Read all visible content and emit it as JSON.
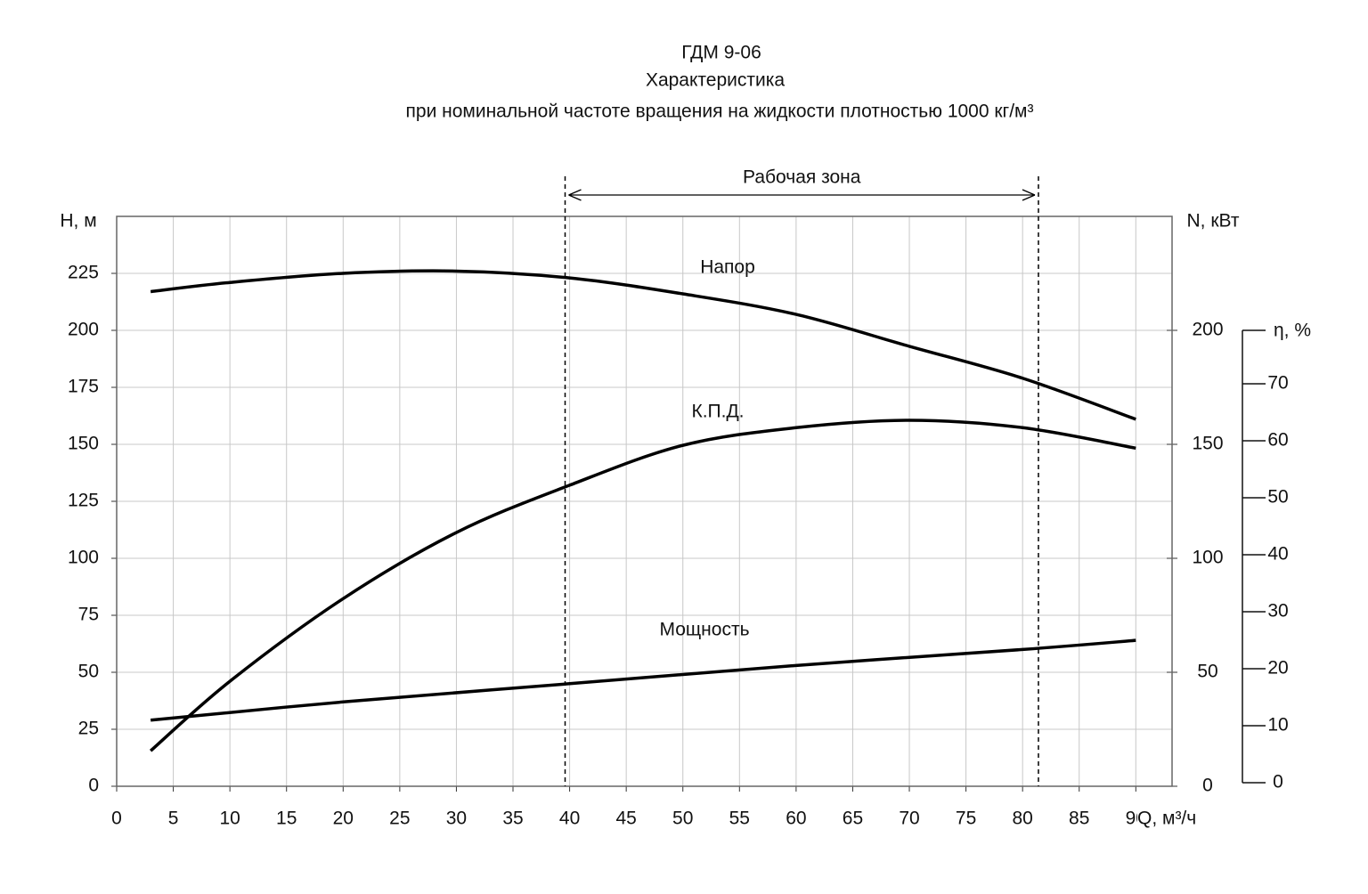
{
  "chart_data": {
    "type": "line",
    "title": "ГДМ 9-06",
    "subtitle": "Характеристика",
    "subtitle2": "при номинальной  частоте  вращения  на жидкости  плотностью  1000  кг/м³",
    "xlabel": "Q, м³/ч",
    "ylabel": "H, м",
    "y2label": "N, кВт",
    "y3label": "η, %",
    "xlim": [
      0,
      93.2
    ],
    "xticks": [
      0,
      5,
      10,
      15,
      20,
      25,
      30,
      35,
      40,
      45,
      50,
      55,
      60,
      65,
      70,
      75,
      80,
      85,
      90
    ],
    "ylim": [
      0,
      250
    ],
    "yticks": [
      0,
      25,
      50,
      75,
      100,
      125,
      150,
      175,
      200,
      225
    ],
    "y2lim": [
      0,
      250
    ],
    "y2ticks": [
      0,
      50,
      100,
      150,
      200
    ],
    "y3lim": [
      0,
      80
    ],
    "y3ticks": [
      0,
      10,
      20,
      30,
      40,
      50,
      60,
      70
    ],
    "grid": true,
    "work_zone": {
      "label": "Рабочая   зона",
      "range": [
        39.6,
        81.4
      ]
    },
    "series": [
      {
        "name": "Напор",
        "color": "#000000",
        "axis": "y",
        "x": [
          3,
          10,
          20,
          30,
          40,
          50,
          60,
          70,
          80,
          90
        ],
        "values": [
          217,
          221,
          225,
          226,
          223,
          216,
          207,
          193,
          179,
          161
        ]
      },
      {
        "name": "К.П.Д.",
        "color": "#000000",
        "axis": "y3",
        "x": [
          3,
          10,
          20,
          30,
          40,
          50,
          60,
          70,
          80,
          90
        ],
        "values": [
          5.6,
          17.8,
          32.3,
          43.9,
          52.2,
          59.2,
          62.3,
          63.6,
          62.3,
          58.7
        ]
      },
      {
        "name": "Мощность",
        "color": "#000000",
        "axis": "y2",
        "x": [
          3,
          20,
          40,
          60,
          80,
          90
        ],
        "values": [
          29,
          37,
          45,
          53,
          60,
          64
        ]
      }
    ]
  }
}
